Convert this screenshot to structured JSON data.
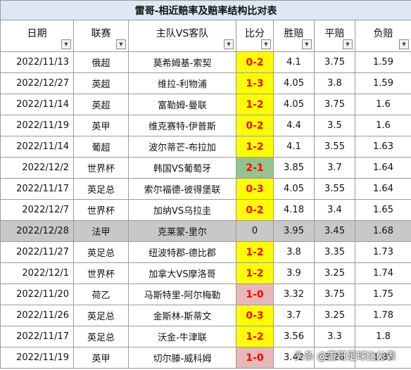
{
  "title": "雷哥-相近赔率及赔率结构比对表",
  "headers": [
    "日期",
    "联赛",
    "主队VS客队",
    "比分",
    "胜赔",
    "平赔",
    "负赔"
  ],
  "filter_icon": "dropdown-arrow-icon",
  "rows": [
    {
      "date": "2022/11/13",
      "league": "俄超",
      "teams": "莫希姆基-索契",
      "score": "0-2",
      "win": "4.1",
      "draw": "3.75",
      "lose": "1.59",
      "color": "yellow"
    },
    {
      "date": "2022/12/27",
      "league": "英超",
      "teams": "维拉-利物浦",
      "score": "1-3",
      "win": "4.05",
      "draw": "3.8",
      "lose": "1.59",
      "color": "yellow"
    },
    {
      "date": "2022/11/14",
      "league": "英超",
      "teams": "富勒姆-曼联",
      "score": "1-2",
      "win": "4.05",
      "draw": "3.75",
      "lose": "1.6",
      "color": "yellow"
    },
    {
      "date": "2022/11/19",
      "league": "英甲",
      "teams": "维克赛特-伊普斯",
      "score": "0-2",
      "win": "4.4",
      "draw": "3.5",
      "lose": "1.6",
      "color": "yellow"
    },
    {
      "date": "2022/11/14",
      "league": "葡超",
      "teams": "波尔蒂芒-布拉加",
      "score": "1-2",
      "win": "4.1",
      "draw": "3.55",
      "lose": "1.63",
      "color": "yellow"
    },
    {
      "date": "2022/12/2",
      "league": "世界杯",
      "teams": "韩国VS葡萄牙",
      "score": "2-1",
      "win": "3.85",
      "draw": "3.7",
      "lose": "1.64",
      "color": "green"
    },
    {
      "date": "2022/11/17",
      "league": "英足总",
      "teams": "索尔福德-彼得堡联",
      "score": "0-3",
      "win": "4.05",
      "draw": "3.55",
      "lose": "1.64",
      "color": "yellow"
    },
    {
      "date": "2022/12/7",
      "league": "世界杯",
      "teams": "加纳VS乌拉圭",
      "score": "0-2",
      "win": "4.18",
      "draw": "3.4",
      "lose": "1.65",
      "color": "yellow"
    },
    {
      "date": "2022/12/28",
      "league": "法甲",
      "teams": "克莱蒙-里尔",
      "score": "0",
      "win": "3.95",
      "draw": "3.45",
      "lose": "1.68",
      "color": "plain",
      "highlight": true
    },
    {
      "date": "2022/11/27",
      "league": "英足总",
      "teams": "纽波特郡-德比郡",
      "score": "1-2",
      "win": "3.8",
      "draw": "3.35",
      "lose": "1.73",
      "color": "yellow"
    },
    {
      "date": "2022/12/1",
      "league": "世界杯",
      "teams": "加拿大VS摩洛哥",
      "score": "1-2",
      "win": "3.9",
      "draw": "3.25",
      "lose": "1.74",
      "color": "yellow"
    },
    {
      "date": "2022/11/20",
      "league": "荷乙",
      "teams": "马斯特里-阿尔梅勒",
      "score": "1-0",
      "win": "3.32",
      "draw": "3.75",
      "lose": "1.75",
      "color": "pink"
    },
    {
      "date": "2022/11/26",
      "league": "英足总",
      "teams": "金斯林-斯蒂文",
      "score": "0-3",
      "win": "3.7",
      "draw": "3.25",
      "lose": "1.78",
      "color": "yellow"
    },
    {
      "date": "2022/11/17",
      "league": "英足总",
      "teams": "沃金-牛津联",
      "score": "1-2",
      "win": "3.56",
      "draw": "3.3",
      "lose": "1.8",
      "color": "yellow"
    },
    {
      "date": "2022/11/19",
      "league": "英甲",
      "teams": "切尔滕-威科姆",
      "score": "1-0",
      "win": "3.42",
      "draw": "3.26",
      "lose": "1.85",
      "color": "pink"
    }
  ],
  "watermark": "头条 @雷哥足球比分表"
}
